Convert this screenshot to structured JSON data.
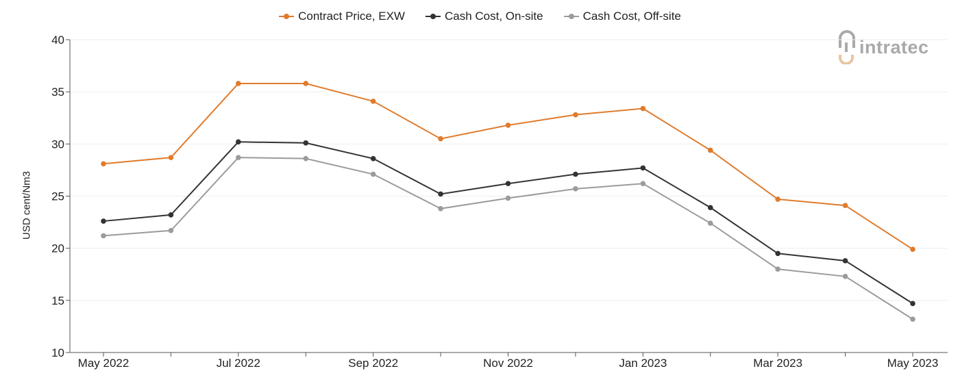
{
  "legend": [
    {
      "label": "Contract Price, EXW",
      "color": "#e07b2c"
    },
    {
      "label": "Cash Cost, On-site",
      "color": "#333333"
    },
    {
      "label": "Cash Cost, Off-site",
      "color": "#9b9b9b"
    }
  ],
  "logo": {
    "text": "intratec"
  },
  "chart_data": {
    "type": "line",
    "ylabel": "USD cent/Nm3",
    "xlabel": "",
    "ylim": [
      10,
      40
    ],
    "yticks": [
      10,
      15,
      20,
      25,
      30,
      35,
      40
    ],
    "x": [
      "May 2022",
      "Jun 2022",
      "Jul 2022",
      "Aug 2022",
      "Sep 2022",
      "Oct 2022",
      "Nov 2022",
      "Dec 2022",
      "Jan 2023",
      "Feb 2023",
      "Mar 2023",
      "Apr 2023",
      "May 2023"
    ],
    "xtick_labels": [
      "May 2022",
      "",
      "Jul 2022",
      "",
      "Sep 2022",
      "",
      "Nov 2022",
      "",
      "Jan 2023",
      "",
      "Mar 2023",
      "",
      "May 2023"
    ],
    "grid": "horizontal",
    "legend_position": "top-center",
    "series": [
      {
        "name": "Contract Price, EXW",
        "color": "#e07b2c",
        "values": [
          28.1,
          28.7,
          35.8,
          35.8,
          34.1,
          30.5,
          31.8,
          32.8,
          33.4,
          29.4,
          24.7,
          24.1,
          19.9
        ]
      },
      {
        "name": "Cash Cost, On-site",
        "color": "#333333",
        "values": [
          22.6,
          23.2,
          30.2,
          30.1,
          28.6,
          25.2,
          26.2,
          27.1,
          27.7,
          23.9,
          19.5,
          18.8,
          14.7
        ]
      },
      {
        "name": "Cash Cost, Off-site",
        "color": "#9b9b9b",
        "values": [
          21.2,
          21.7,
          28.7,
          28.6,
          27.1,
          23.8,
          24.8,
          25.7,
          26.2,
          22.4,
          18.0,
          17.3,
          13.2
        ]
      }
    ]
  }
}
